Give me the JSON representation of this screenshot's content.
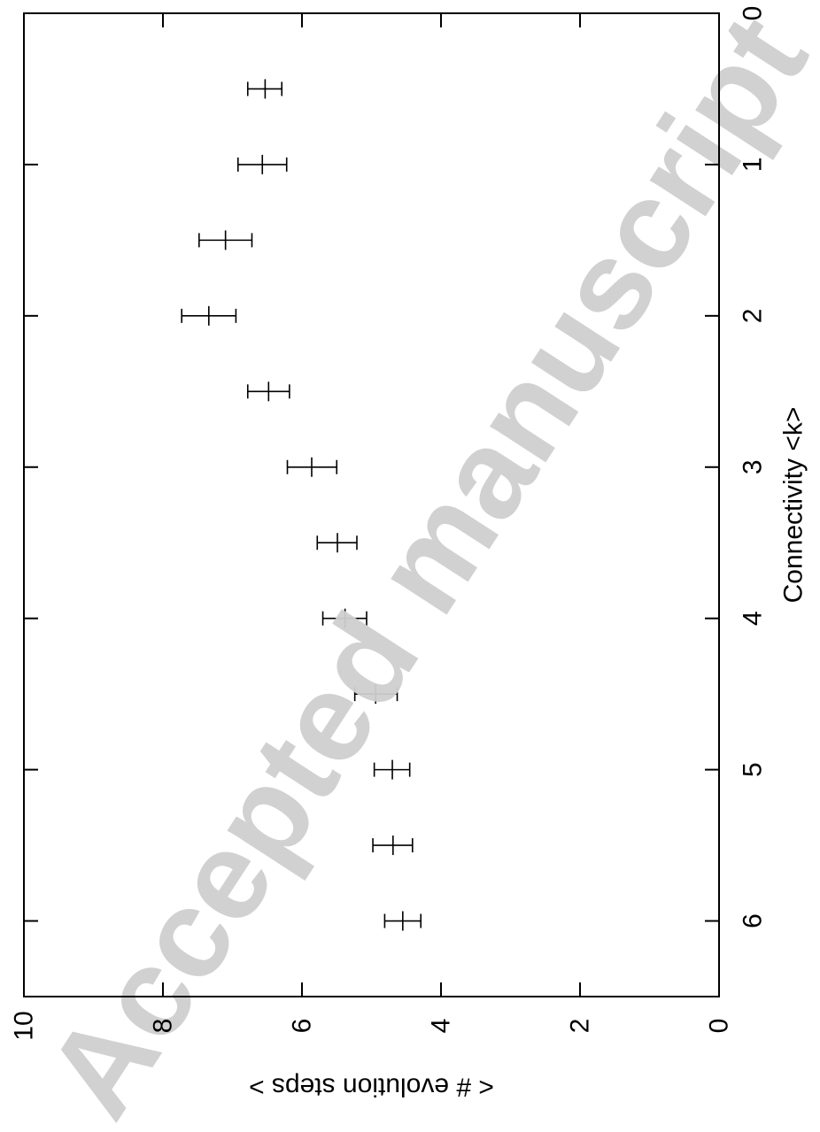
{
  "watermark": "Accepted manuscript",
  "chart_data": {
    "type": "scatter",
    "orientation": "rotated-90-clockwise",
    "xlabel": "Connectivity <k>",
    "ylabel": "< # evolution steps >",
    "xlim": [
      0,
      6.5
    ],
    "ylim": [
      0,
      10
    ],
    "x_ticks": [
      0,
      1,
      2,
      3,
      4,
      5,
      6
    ],
    "y_ticks": [
      0,
      2,
      4,
      6,
      8,
      10
    ],
    "grid": false,
    "series": [
      {
        "error_bars": true,
        "color": "#000000",
        "points": [
          {
            "x": 0.5,
            "y": 6.53,
            "ylow": 6.29,
            "yhigh": 6.78
          },
          {
            "x": 1.0,
            "y": 6.57,
            "ylow": 6.22,
            "yhigh": 6.92
          },
          {
            "x": 1.5,
            "y": 7.1,
            "ylow": 6.72,
            "yhigh": 7.48
          },
          {
            "x": 2.0,
            "y": 7.34,
            "ylow": 6.95,
            "yhigh": 7.73
          },
          {
            "x": 2.5,
            "y": 6.48,
            "ylow": 6.18,
            "yhigh": 6.78
          },
          {
            "x": 3.0,
            "y": 5.86,
            "ylow": 5.5,
            "yhigh": 6.21
          },
          {
            "x": 3.5,
            "y": 5.49,
            "ylow": 5.21,
            "yhigh": 5.78
          },
          {
            "x": 4.0,
            "y": 5.38,
            "ylow": 5.07,
            "yhigh": 5.7
          },
          {
            "x": 4.5,
            "y": 4.94,
            "ylow": 4.63,
            "yhigh": 5.24
          },
          {
            "x": 5.0,
            "y": 4.7,
            "ylow": 4.45,
            "yhigh": 4.96
          },
          {
            "x": 5.5,
            "y": 4.69,
            "ylow": 4.41,
            "yhigh": 4.98
          },
          {
            "x": 6.0,
            "y": 4.55,
            "ylow": 4.29,
            "yhigh": 4.81
          }
        ]
      }
    ]
  }
}
